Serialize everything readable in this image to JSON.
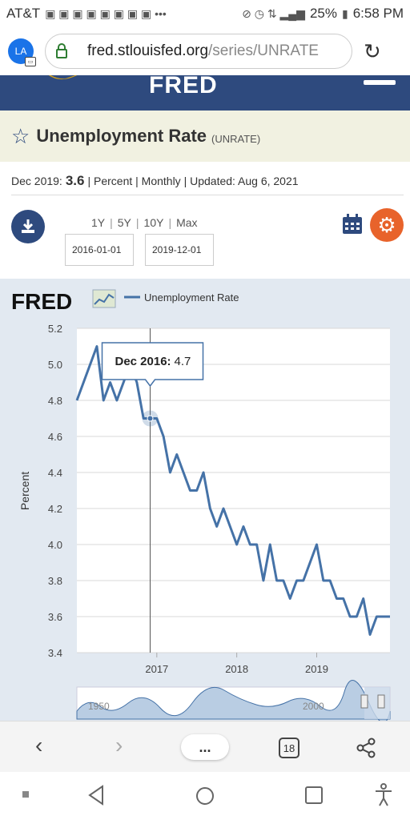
{
  "status_bar": {
    "carrier": "AT&T",
    "battery": "25%",
    "time": "6:58 PM"
  },
  "browser": {
    "profile_initials": "LA",
    "url_domain": "fred.stlouisfed.org",
    "url_path": "/series/UNRATE"
  },
  "site": {
    "logo_text": "FRED"
  },
  "series": {
    "title": "Unemployment Rate",
    "code": "(UNRATE)",
    "latest_label": "Dec 2019:",
    "latest_value": "3.6",
    "units": "| Percent | Monthly | Updated: Aug 6, 2021"
  },
  "controls": {
    "ranges": [
      "1Y",
      "5Y",
      "10Y",
      "Max"
    ],
    "start_date": "2016-01-01",
    "end_date": "2019-12-01"
  },
  "chart_header": {
    "logo_text": "FRED",
    "legend_label": "Unemployment Rate"
  },
  "tooltip": {
    "label": "Dec 2016:",
    "value": "4.7"
  },
  "navigator": {
    "left_year": "1950",
    "right_year": "2000"
  },
  "toolbar": {
    "tab_count": "18",
    "menu_label": "..."
  },
  "colors": {
    "line": "#4572a7",
    "header_bg": "#2e4a7e",
    "title_bg": "#f1f1e1",
    "chart_bg": "#e2e9f1",
    "accent_orange": "#e8632b"
  },
  "chart_data": {
    "type": "line",
    "ylabel": "Percent",
    "ylim": [
      3.4,
      5.2
    ],
    "yticks": [
      "5.2",
      "5.0",
      "4.8",
      "4.6",
      "4.4",
      "4.2",
      "4.0",
      "3.8",
      "3.6",
      "3.4"
    ],
    "xticks": [
      "2017",
      "2018",
      "2019"
    ],
    "x": [
      "2016-01",
      "2016-02",
      "2016-03",
      "2016-04",
      "2016-05",
      "2016-06",
      "2016-07",
      "2016-08",
      "2016-09",
      "2016-10",
      "2016-11",
      "2016-12",
      "2017-01",
      "2017-02",
      "2017-03",
      "2017-04",
      "2017-05",
      "2017-06",
      "2017-07",
      "2017-08",
      "2017-09",
      "2017-10",
      "2017-11",
      "2017-12",
      "2018-01",
      "2018-02",
      "2018-03",
      "2018-04",
      "2018-05",
      "2018-06",
      "2018-07",
      "2018-08",
      "2018-09",
      "2018-10",
      "2018-11",
      "2018-12",
      "2019-01",
      "2019-02",
      "2019-03",
      "2019-04",
      "2019-05",
      "2019-06",
      "2019-07",
      "2019-08",
      "2019-09",
      "2019-10",
      "2019-11",
      "2019-12"
    ],
    "series": [
      {
        "name": "Unemployment Rate",
        "values": [
          4.8,
          4.9,
          5.0,
          5.1,
          4.8,
          4.9,
          4.8,
          4.9,
          5.0,
          4.9,
          4.7,
          4.7,
          4.7,
          4.6,
          4.4,
          4.5,
          4.4,
          4.3,
          4.3,
          4.4,
          4.2,
          4.1,
          4.2,
          4.1,
          4.0,
          4.1,
          4.0,
          4.0,
          3.8,
          4.0,
          3.8,
          3.8,
          3.7,
          3.8,
          3.8,
          3.9,
          4.0,
          3.8,
          3.8,
          3.7,
          3.7,
          3.6,
          3.6,
          3.7,
          3.5,
          3.6,
          3.6,
          3.6
        ]
      }
    ],
    "highlight_index": 11,
    "grid": true
  }
}
